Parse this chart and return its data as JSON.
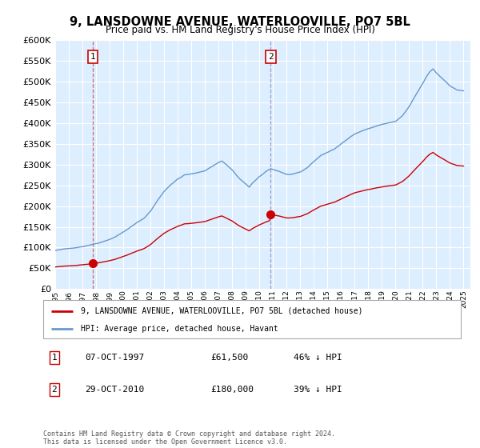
{
  "title": "9, LANSDOWNE AVENUE, WATERLOOVILLE, PO7 5BL",
  "subtitle": "Price paid vs. HM Land Registry's House Price Index (HPI)",
  "plot_bg_color": "#ddeeff",
  "ylim": [
    0,
    600000
  ],
  "yticks": [
    0,
    50000,
    100000,
    150000,
    200000,
    250000,
    300000,
    350000,
    400000,
    450000,
    500000,
    550000,
    600000
  ],
  "sale1_year": 1997.77,
  "sale1_price": 61500,
  "sale2_year": 2010.83,
  "sale2_price": 180000,
  "legend_house": "9, LANSDOWNE AVENUE, WATERLOOVILLE, PO7 5BL (detached house)",
  "legend_hpi": "HPI: Average price, detached house, Havant",
  "note1_date": "07-OCT-1997",
  "note1_price": "£61,500",
  "note1_hpi": "46% ↓ HPI",
  "note2_date": "29-OCT-2010",
  "note2_price": "£180,000",
  "note2_hpi": "39% ↓ HPI",
  "footer": "Contains HM Land Registry data © Crown copyright and database right 2024.\nThis data is licensed under the Open Government Licence v3.0.",
  "house_color": "#cc0000",
  "hpi_color": "#6699cc",
  "xstart": 1995.0,
  "xend": 2025.5
}
